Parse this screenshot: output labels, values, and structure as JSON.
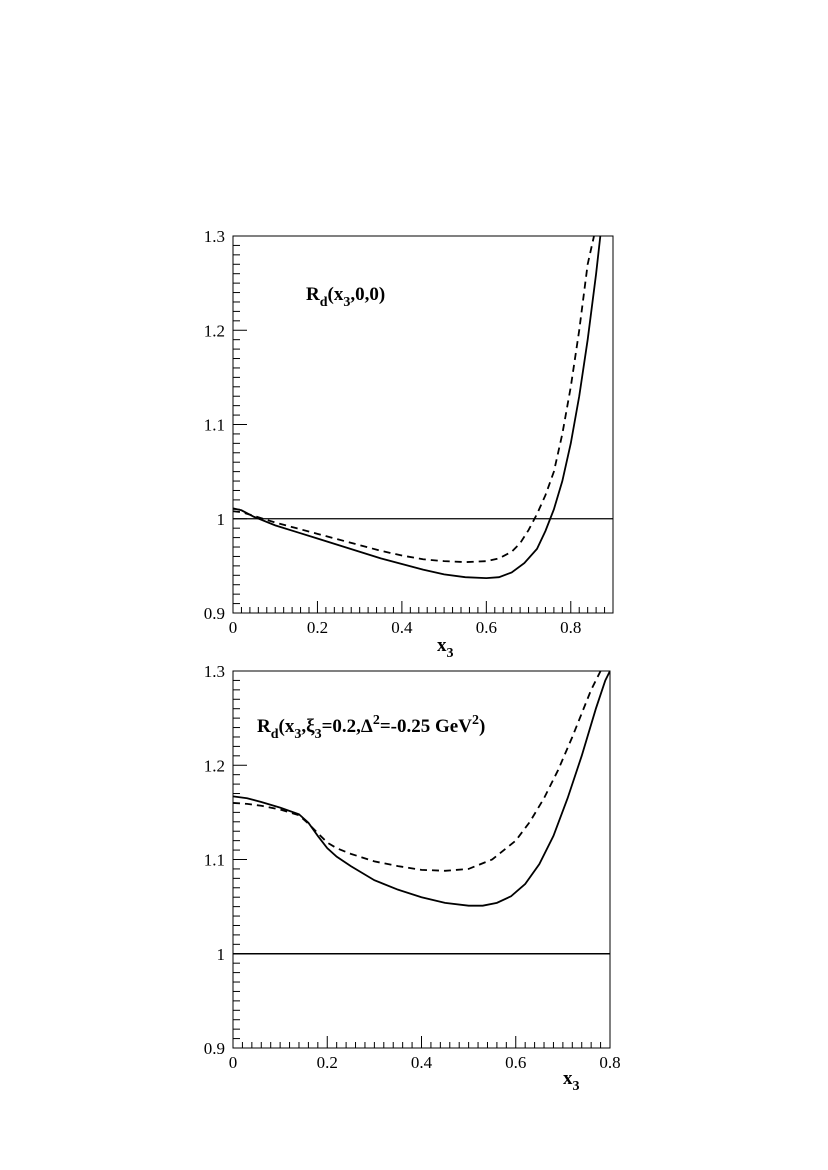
{
  "chart_data": [
    {
      "type": "line",
      "annotation": {
        "base": "R",
        "sub": "d",
        "rest": "(x",
        "sub2": "3",
        "rest2": ",0,0)"
      },
      "xlabel": {
        "base": "x",
        "sub": "3"
      },
      "xlim": [
        0,
        0.9
      ],
      "ylim": [
        0.9,
        1.3
      ],
      "x_ticks": [
        0,
        0.2,
        0.4,
        0.6,
        0.8
      ],
      "x_tick_labels": [
        "0",
        "0.2",
        "0.4",
        "0.6",
        "0.8"
      ],
      "y_ticks": [
        0.9,
        1.0,
        1.1,
        1.2,
        1.3
      ],
      "y_tick_labels": [
        "0.9",
        "1",
        "1.1",
        "1.2",
        "1.3"
      ],
      "reference_line": 1.0,
      "series": [
        {
          "style": "solid",
          "x": [
            0,
            0.02,
            0.05,
            0.1,
            0.15,
            0.2,
            0.25,
            0.3,
            0.35,
            0.4,
            0.45,
            0.5,
            0.55,
            0.6,
            0.63,
            0.66,
            0.69,
            0.72,
            0.74,
            0.76,
            0.78,
            0.8,
            0.82,
            0.84,
            0.86,
            0.87
          ],
          "y": [
            1.011,
            1.009,
            1.002,
            0.993,
            0.986,
            0.979,
            0.972,
            0.965,
            0.958,
            0.952,
            0.946,
            0.941,
            0.938,
            0.937,
            0.938,
            0.943,
            0.953,
            0.968,
            0.987,
            1.01,
            1.04,
            1.08,
            1.13,
            1.19,
            1.26,
            1.3
          ]
        },
        {
          "style": "dashed",
          "x": [
            0,
            0.02,
            0.05,
            0.1,
            0.15,
            0.2,
            0.25,
            0.3,
            0.35,
            0.4,
            0.45,
            0.5,
            0.55,
            0.6,
            0.63,
            0.66,
            0.68,
            0.7,
            0.72,
            0.74,
            0.76,
            0.78,
            0.8,
            0.82,
            0.84,
            0.855
          ],
          "y": [
            1.008,
            1.007,
            1.003,
            0.996,
            0.99,
            0.984,
            0.978,
            0.972,
            0.966,
            0.961,
            0.957,
            0.955,
            0.954,
            0.955,
            0.958,
            0.965,
            0.974,
            0.988,
            1.005,
            1.025,
            1.05,
            1.09,
            1.14,
            1.2,
            1.27,
            1.3
          ]
        }
      ]
    },
    {
      "type": "line",
      "annotation": {
        "base": "R",
        "sub": "d",
        "rest": "(x",
        "sub2": "3",
        "rest2": ",ξ",
        "sub3": "3",
        "rest3": "=0.2,Δ",
        "sup": "2",
        "rest4": "=-0.25 GeV",
        "sup2": "2",
        "rest5": ")"
      },
      "xlabel": {
        "base": "x",
        "sub": "3"
      },
      "xlim": [
        0,
        0.8
      ],
      "ylim": [
        0.9,
        1.3
      ],
      "x_ticks": [
        0,
        0.2,
        0.4,
        0.6,
        0.8
      ],
      "x_tick_labels": [
        "0",
        "0.2",
        "0.4",
        "0.6",
        "0.8"
      ],
      "y_ticks": [
        0.9,
        1.0,
        1.1,
        1.2,
        1.3
      ],
      "y_tick_labels": [
        "0.9",
        "1",
        "1.1",
        "1.2",
        "1.3"
      ],
      "reference_line": 1.0,
      "series": [
        {
          "style": "solid",
          "x": [
            0,
            0.03,
            0.06,
            0.1,
            0.14,
            0.16,
            0.18,
            0.2,
            0.22,
            0.25,
            0.3,
            0.35,
            0.4,
            0.45,
            0.5,
            0.53,
            0.56,
            0.59,
            0.62,
            0.65,
            0.68,
            0.71,
            0.74,
            0.77,
            0.79,
            0.8
          ],
          "y": [
            1.167,
            1.165,
            1.161,
            1.155,
            1.148,
            1.139,
            1.125,
            1.112,
            1.103,
            1.093,
            1.078,
            1.068,
            1.06,
            1.054,
            1.051,
            1.051,
            1.054,
            1.061,
            1.074,
            1.095,
            1.125,
            1.165,
            1.21,
            1.26,
            1.29,
            1.3
          ]
        },
        {
          "style": "dashed",
          "x": [
            0,
            0.03,
            0.06,
            0.1,
            0.14,
            0.16,
            0.18,
            0.2,
            0.22,
            0.25,
            0.3,
            0.35,
            0.4,
            0.45,
            0.5,
            0.55,
            0.6,
            0.63,
            0.66,
            0.69,
            0.72,
            0.74,
            0.76,
            0.78
          ],
          "y": [
            1.16,
            1.159,
            1.157,
            1.153,
            1.147,
            1.138,
            1.128,
            1.118,
            1.112,
            1.106,
            1.098,
            1.093,
            1.089,
            1.088,
            1.09,
            1.1,
            1.12,
            1.14,
            1.165,
            1.195,
            1.23,
            1.255,
            1.28,
            1.3
          ]
        }
      ]
    }
  ]
}
